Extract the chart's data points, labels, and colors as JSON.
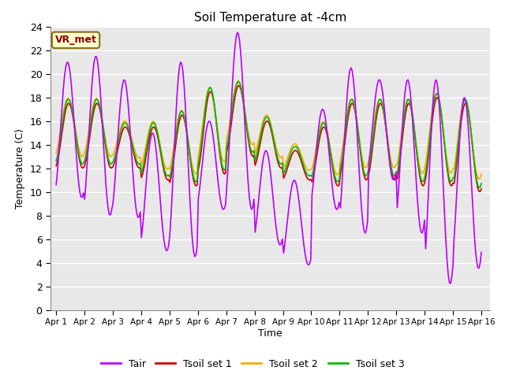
{
  "title": "Soil Temperature at -4cm",
  "xlabel": "Time",
  "ylabel": "Temperature (C)",
  "ylim": [
    0,
    24
  ],
  "bg_color": "#ffffff",
  "plot_bg": "#e8e8e8",
  "grid_color": "#ffffff",
  "label_box": "VR_met",
  "xtick_labels": [
    "Apr 1",
    "Apr 2",
    "Apr 3",
    "Apr 4",
    "Apr 5",
    "Apr 6",
    "Apr 7",
    "Apr 8",
    "Apr 9",
    "Apr 10",
    "Apr 11",
    "Apr 12",
    "Apr 13",
    "Apr 14",
    "Apr 15",
    "Apr 16"
  ],
  "ytick_vals": [
    0,
    2,
    4,
    6,
    8,
    10,
    12,
    14,
    16,
    18,
    20,
    22,
    24
  ],
  "colors": {
    "Tair": "#bb00ff",
    "Tsoil1": "#cc0000",
    "Tsoil2": "#ffaa00",
    "Tsoil3": "#00bb00"
  },
  "legend_labels": [
    "Tair",
    "Tsoil set 1",
    "Tsoil set 2",
    "Tsoil set 3"
  ],
  "tair_day_max": [
    21.0,
    21.5,
    19.5,
    15.0,
    21.0,
    16.0,
    23.5,
    13.5,
    11.0,
    17.0,
    20.5,
    19.5,
    19.5,
    19.5,
    18.0,
    18.0
  ],
  "tair_day_min": [
    9.5,
    8.0,
    7.8,
    5.0,
    4.5,
    8.5,
    8.5,
    5.5,
    3.8,
    8.5,
    6.5,
    11.0,
    6.5,
    2.2,
    3.5,
    6.0
  ],
  "tsoil_day_max": [
    17.5,
    17.5,
    15.5,
    15.5,
    16.5,
    18.5,
    19.0,
    16.0,
    13.5,
    15.5,
    17.5,
    17.5,
    17.5,
    18.0,
    17.5,
    18.5
  ],
  "tsoil_day_min": [
    12.0,
    12.0,
    12.0,
    11.0,
    10.5,
    11.5,
    13.0,
    12.0,
    11.0,
    10.5,
    11.0,
    11.0,
    10.5,
    10.5,
    10.0,
    10.5
  ],
  "n_points": 360,
  "n_days": 15
}
